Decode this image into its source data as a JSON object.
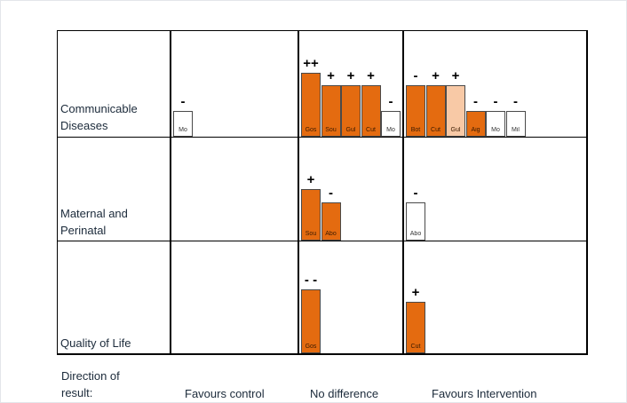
{
  "rows": [
    {
      "label_lines": [
        "Communicable",
        "Diseases"
      ]
    },
    {
      "label_lines": [
        "Maternal and",
        "Perinatal"
      ]
    },
    {
      "label_lines": [
        "Quality of Life"
      ]
    }
  ],
  "footer": {
    "label_lines": [
      "Direction of",
      "result:"
    ],
    "columns": [
      "Favours control",
      "No difference",
      "Favours Intervention"
    ]
  },
  "colors": {
    "filled": "#e46b10",
    "light": "#f8c9a6",
    "empty": "#ffffff",
    "grid": "#000000"
  },
  "bars": [
    {
      "row": 0,
      "col": 0,
      "label": "Mo",
      "sign": "-",
      "style": "empty",
      "level": 2
    },
    {
      "row": 0,
      "col": 1,
      "label": "Gos",
      "sign": "++",
      "style": "filled",
      "level": 5
    },
    {
      "row": 0,
      "col": 1,
      "label": "Sou",
      "sign": "+",
      "style": "filled",
      "level": 4
    },
    {
      "row": 0,
      "col": 1,
      "label": "Gul",
      "sign": "+",
      "style": "filled",
      "level": 4
    },
    {
      "row": 0,
      "col": 1,
      "label": "Cut",
      "sign": "+",
      "style": "filled",
      "level": 4
    },
    {
      "row": 0,
      "col": 1,
      "label": "Mo",
      "sign": "-",
      "style": "empty",
      "level": 2
    },
    {
      "row": 0,
      "col": 2,
      "label": "Bot",
      "sign": "-",
      "style": "filled",
      "level": 4
    },
    {
      "row": 0,
      "col": 2,
      "label": "Cut",
      "sign": "+",
      "style": "filled",
      "level": 4
    },
    {
      "row": 0,
      "col": 2,
      "label": "Gul",
      "sign": "+",
      "style": "light",
      "level": 4
    },
    {
      "row": 0,
      "col": 2,
      "label": "Aig",
      "sign": "-",
      "style": "filled",
      "level": 2
    },
    {
      "row": 0,
      "col": 2,
      "label": "Mo",
      "sign": "-",
      "style": "empty",
      "level": 2
    },
    {
      "row": 0,
      "col": 2,
      "label": "Mil",
      "sign": "-",
      "style": "empty",
      "level": 2
    },
    {
      "row": 1,
      "col": 1,
      "label": "Sou",
      "sign": "+",
      "style": "filled",
      "level": 4
    },
    {
      "row": 1,
      "col": 1,
      "label": "Abo",
      "sign": "-",
      "style": "filled",
      "level": 3
    },
    {
      "row": 1,
      "col": 2,
      "label": "Abo",
      "sign": "-",
      "style": "empty",
      "level": 3
    },
    {
      "row": 2,
      "col": 1,
      "label": "Gos",
      "sign": "- -",
      "style": "filled",
      "level": 5
    },
    {
      "row": 2,
      "col": 2,
      "label": "Cut",
      "sign": "+",
      "style": "filled",
      "level": 4
    }
  ]
}
